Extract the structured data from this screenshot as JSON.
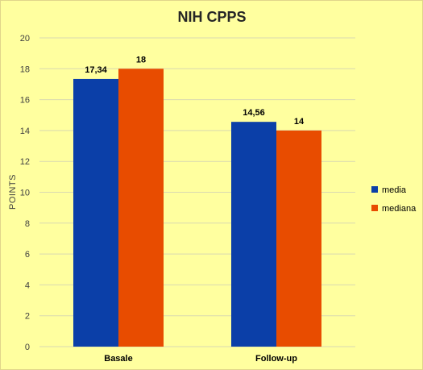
{
  "chart_data": {
    "type": "bar",
    "title": "NIH CPPS",
    "ylabel": "POINTS",
    "xlabel": "",
    "categories": [
      "Basale",
      "Follow-up"
    ],
    "series": [
      {
        "name": "media",
        "values": [
          17.34,
          14.56
        ],
        "labels": [
          "17,34",
          "14,56"
        ],
        "color": "#0b3fa8"
      },
      {
        "name": "mediana",
        "values": [
          18,
          14
        ],
        "labels": [
          "18",
          "14"
        ],
        "color": "#e84c00"
      }
    ],
    "ylim": [
      0,
      20
    ],
    "yticks": [
      0,
      2,
      4,
      6,
      8,
      10,
      12,
      14,
      16,
      18,
      20
    ],
    "grid": true,
    "legend_position": "right",
    "background": "#ffff9f",
    "gridline_color": "#d9d9b0"
  }
}
